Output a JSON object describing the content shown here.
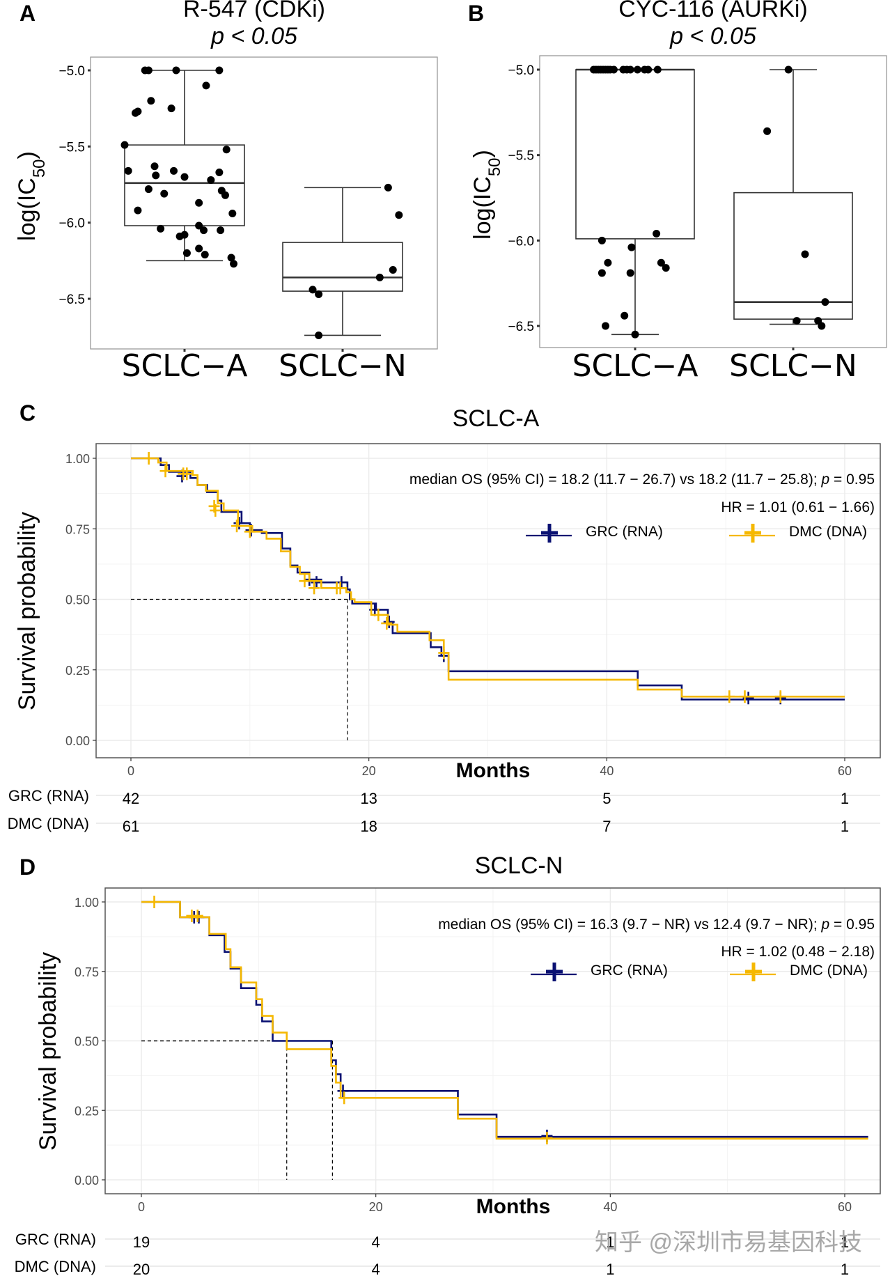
{
  "colors": {
    "grc": "#0a1172",
    "dmc": "#f5b800",
    "grid": "#ebebeb",
    "box": "#333333"
  },
  "watermark": "知乎 @深圳市易基因科技",
  "chart_data": [
    {
      "id": "A",
      "type": "box",
      "panel_label": "A",
      "title": "R-547 (CDKi)",
      "subtitle": "p < 0.05",
      "ylabel": "log(IC50)",
      "ylabel_main": "log(IC",
      "ylabel_sub": "50",
      "ylabel_end": ")",
      "ylim": [
        -6.72,
        -4.92
      ],
      "yticks": [
        -5.0,
        -5.5,
        -6.0,
        -6.5
      ],
      "ytick_labels": [
        "−5.0",
        "−5.5",
        "−6.0",
        "−6.5"
      ],
      "categories": [
        "SCLC−A",
        "SCLC−N"
      ],
      "boxes": [
        {
          "q1": -6.02,
          "median": -5.74,
          "q3": -5.49,
          "whisker_low": -6.25,
          "whisker_high": -5.0
        },
        {
          "q1": -6.45,
          "median": -6.36,
          "q3": -6.13,
          "whisker_low": -6.74,
          "whisker_high": -5.77
        }
      ],
      "points": [
        [
          [
            -0.33,
            -5.0
          ],
          [
            -0.3,
            -5.0
          ],
          [
            -0.07,
            -5.0
          ],
          [
            0.29,
            -5.0
          ],
          [
            0.18,
            -5.1
          ],
          [
            -0.28,
            -5.2
          ],
          [
            -0.11,
            -5.25
          ],
          [
            -0.39,
            -5.27
          ],
          [
            -0.41,
            -5.28
          ],
          [
            -0.5,
            -5.49
          ],
          [
            0.35,
            -5.52
          ],
          [
            -0.25,
            -5.63
          ],
          [
            -0.47,
            -5.66
          ],
          [
            -0.09,
            -5.66
          ],
          [
            -0.24,
            -5.69
          ],
          [
            0.0,
            -5.7
          ],
          [
            0.29,
            -5.67
          ],
          [
            0.22,
            -5.72
          ],
          [
            -0.3,
            -5.78
          ],
          [
            0.31,
            -5.79
          ],
          [
            0.34,
            -5.82
          ],
          [
            -0.17,
            -5.81
          ],
          [
            0.12,
            -5.87
          ],
          [
            0.4,
            -5.94
          ],
          [
            -0.39,
            -5.92
          ],
          [
            -0.2,
            -6.04
          ],
          [
            0.12,
            -6.02
          ],
          [
            0.16,
            -6.05
          ],
          [
            0.3,
            -6.05
          ],
          [
            -0.04,
            -6.09
          ],
          [
            0.0,
            -6.08
          ],
          [
            0.12,
            -6.17
          ],
          [
            0.02,
            -6.2
          ],
          [
            0.17,
            -6.21
          ],
          [
            0.39,
            -6.23
          ],
          [
            0.41,
            -6.27
          ]
        ],
        [
          [
            0.38,
            -5.77
          ],
          [
            0.47,
            -5.95
          ],
          [
            0.42,
            -6.31
          ],
          [
            0.31,
            -6.36
          ],
          [
            -0.25,
            -6.44
          ],
          [
            -0.2,
            -6.47
          ],
          [
            -0.2,
            -6.74
          ]
        ]
      ]
    },
    {
      "id": "B",
      "type": "box",
      "panel_label": "B",
      "title": "CYC-116 (AURKi)",
      "subtitle": "p < 0.05",
      "ylabel": "log(IC50)",
      "ylabel_main": "log(IC",
      "ylabel_sub": "50",
      "ylabel_end": ")",
      "ylim": [
        -6.58,
        -4.95
      ],
      "yticks": [
        -5.0,
        -5.5,
        -6.0,
        -6.5
      ],
      "ytick_labels": [
        "−5.0",
        "−5.5",
        "−6.0",
        "−6.5"
      ],
      "categories": [
        "SCLC−A",
        "SCLC−N"
      ],
      "boxes": [
        {
          "q1": -5.99,
          "median": -5.0,
          "q3": -5.0,
          "whisker_low": -6.55,
          "whisker_high": -5.0
        },
        {
          "q1": -6.46,
          "median": -6.36,
          "q3": -5.72,
          "whisker_low": -6.49,
          "whisker_high": -5.0
        }
      ],
      "points": [
        [
          [
            -0.35,
            -5.0
          ],
          [
            -0.33,
            -5.0
          ],
          [
            -0.31,
            -5.0
          ],
          [
            -0.29,
            -5.0
          ],
          [
            -0.27,
            -5.0
          ],
          [
            -0.25,
            -5.0
          ],
          [
            -0.23,
            -5.0
          ],
          [
            -0.21,
            -5.0
          ],
          [
            -0.18,
            -5.0
          ],
          [
            -0.1,
            -5.0
          ],
          [
            -0.07,
            -5.0
          ],
          [
            -0.04,
            -5.0
          ],
          [
            0.02,
            -5.0
          ],
          [
            0.08,
            -5.0
          ],
          [
            0.11,
            -5.0
          ],
          [
            0.19,
            -5.0
          ],
          [
            -0.28,
            -6.0
          ],
          [
            -0.03,
            -6.04
          ],
          [
            0.18,
            -5.96
          ],
          [
            -0.23,
            -6.13
          ],
          [
            0.22,
            -6.13
          ],
          [
            -0.28,
            -6.19
          ],
          [
            -0.04,
            -6.19
          ],
          [
            0.26,
            -6.16
          ],
          [
            -0.09,
            -6.44
          ],
          [
            -0.25,
            -6.5
          ],
          [
            0.0,
            -6.55
          ]
        ],
        [
          [
            -0.04,
            -5.0
          ],
          [
            -0.22,
            -5.36
          ],
          [
            0.1,
            -6.08
          ],
          [
            0.27,
            -6.36
          ],
          [
            0.03,
            -6.47
          ],
          [
            0.21,
            -6.47
          ],
          [
            0.24,
            -6.5
          ]
        ]
      ]
    },
    {
      "id": "C",
      "type": "line",
      "subtype": "kaplan-meier",
      "panel_label": "C",
      "title": "SCLC-A",
      "xlabel": "Months",
      "ylabel": "Survival probability",
      "xlim": [
        -3,
        62
      ],
      "ylim": [
        -0.04,
        1.04
      ],
      "xticks": [
        0,
        20,
        40,
        60
      ],
      "yticks": [
        0.0,
        0.25,
        0.5,
        0.75,
        1.0
      ],
      "ytick_labels": [
        "0.00",
        "0.25",
        "0.50",
        "0.75",
        "1.00"
      ],
      "annotation_line1": "median OS (95% CI) = 18.2 (11.7 − 26.7) vs 18.2 (11.7 − 25.8); p = 0.95",
      "annotation_line1_parts": [
        "median OS (95% CI) = 18.2 (11.7 − 26.7) vs 18.2 (11.7 − 25.8); ",
        "p",
        " = 0.95"
      ],
      "annotation_line2": "HR = 1.01 (0.61 − 1.66)",
      "median_lines": [
        18.2
      ],
      "legend": [
        "GRC (RNA)",
        "DMC (DNA)"
      ],
      "series": [
        {
          "name": "GRC (RNA)",
          "color_key": "grc",
          "steps": [
            [
              0,
              1.0
            ],
            [
              2.5,
              0.976
            ],
            [
              3.2,
              0.952
            ],
            [
              5.0,
              0.93
            ],
            [
              5.6,
              0.905
            ],
            [
              6.4,
              0.88
            ],
            [
              7.3,
              0.85
            ],
            [
              7.6,
              0.81
            ],
            [
              9.3,
              0.77
            ],
            [
              10.0,
              0.745
            ],
            [
              11.0,
              0.735
            ],
            [
              12.7,
              0.68
            ],
            [
              13.4,
              0.62
            ],
            [
              14.0,
              0.595
            ],
            [
              15.0,
              0.57
            ],
            [
              16.0,
              0.56
            ],
            [
              18.2,
              0.535
            ],
            [
              18.4,
              0.5
            ],
            [
              18.6,
              0.485
            ],
            [
              20.6,
              0.463
            ],
            [
              21.6,
              0.42
            ],
            [
              22.0,
              0.38
            ],
            [
              25.2,
              0.33
            ],
            [
              26.1,
              0.3
            ],
            [
              26.7,
              0.245
            ],
            [
              42.6,
              0.195
            ],
            [
              46.3,
              0.145
            ],
            [
              60,
              0.145
            ]
          ],
          "censors": [
            [
              4.3,
              0.937
            ],
            [
              9.1,
              0.77
            ],
            [
              10.1,
              0.745
            ],
            [
              15.0,
              0.57
            ],
            [
              15.6,
              0.56
            ],
            [
              17.7,
              0.56
            ],
            [
              20.5,
              0.463
            ],
            [
              21.7,
              0.42
            ],
            [
              26.3,
              0.3
            ],
            [
              51.9,
              0.15
            ],
            [
              54.6,
              0.15
            ]
          ]
        },
        {
          "name": "DMC (DNA)",
          "color_key": "dmc",
          "steps": [
            [
              0,
              1.0
            ],
            [
              2.3,
              0.985
            ],
            [
              3.0,
              0.955
            ],
            [
              5.2,
              0.94
            ],
            [
              5.6,
              0.905
            ],
            [
              6.3,
              0.885
            ],
            [
              7.3,
              0.84
            ],
            [
              7.8,
              0.815
            ],
            [
              9.0,
              0.76
            ],
            [
              10.2,
              0.74
            ],
            [
              11.4,
              0.715
            ],
            [
              12.6,
              0.67
            ],
            [
              13.4,
              0.615
            ],
            [
              14.2,
              0.59
            ],
            [
              15.0,
              0.565
            ],
            [
              16.0,
              0.54
            ],
            [
              18.1,
              0.525
            ],
            [
              18.5,
              0.5
            ],
            [
              18.8,
              0.49
            ],
            [
              20.2,
              0.445
            ],
            [
              21.6,
              0.41
            ],
            [
              22.4,
              0.385
            ],
            [
              25.1,
              0.355
            ],
            [
              26.3,
              0.31
            ],
            [
              26.7,
              0.215
            ],
            [
              42.6,
              0.18
            ],
            [
              46.3,
              0.155
            ],
            [
              60,
              0.155
            ]
          ],
          "censors": [
            [
              1.5,
              1.0
            ],
            [
              2.9,
              0.955
            ],
            [
              4.4,
              0.945
            ],
            [
              4.7,
              0.945
            ],
            [
              7.0,
              0.83
            ],
            [
              7.1,
              0.815
            ],
            [
              8.9,
              0.76
            ],
            [
              10.0,
              0.74
            ],
            [
              14.6,
              0.565
            ],
            [
              15.4,
              0.54
            ],
            [
              17.3,
              0.54
            ],
            [
              17.6,
              0.54
            ],
            [
              20.8,
              0.445
            ],
            [
              21.5,
              0.415
            ],
            [
              26.3,
              0.31
            ],
            [
              50.3,
              0.155
            ],
            [
              51.6,
              0.155
            ],
            [
              54.6,
              0.155
            ]
          ]
        }
      ],
      "risk_table": {
        "row_labels": [
          "GRC (RNA)",
          "DMC (DNA)"
        ],
        "times": [
          0,
          20,
          40,
          60
        ],
        "counts": [
          [
            42,
            13,
            5,
            1
          ],
          [
            61,
            18,
            7,
            1
          ]
        ]
      }
    },
    {
      "id": "D",
      "type": "line",
      "subtype": "kaplan-meier",
      "panel_label": "D",
      "title": "SCLC-N",
      "xlabel": "Months",
      "ylabel": "Survival probability",
      "xlim": [
        -3,
        62
      ],
      "ylim": [
        -0.04,
        1.05
      ],
      "xticks": [
        0,
        20,
        40,
        60
      ],
      "yticks": [
        0.0,
        0.25,
        0.5,
        0.75,
        1.0
      ],
      "ytick_labels": [
        "0.00",
        "0.25",
        "0.50",
        "0.75",
        "1.00"
      ],
      "annotation_line1": "median OS (95% CI) = 16.3 (9.7 − NR) vs 12.4 (9.7 − NR); p = 0.95",
      "annotation_line1_parts": [
        "median OS (95% CI) = 16.3 (9.7 − NR) vs 12.4 (9.7 − NR); ",
        "p",
        " = 0.95"
      ],
      "annotation_line2": "HR = 1.02 (0.48 − 2.18)",
      "median_lines": [
        12.4,
        16.3
      ],
      "legend": [
        "GRC (RNA)",
        "DMC (DNA)"
      ],
      "series": [
        {
          "name": "GRC (RNA)",
          "color_key": "grc",
          "steps": [
            [
              0,
              1.0
            ],
            [
              3.3,
              0.945
            ],
            [
              5.8,
              0.88
            ],
            [
              7.1,
              0.82
            ],
            [
              7.6,
              0.76
            ],
            [
              8.5,
              0.69
            ],
            [
              9.8,
              0.63
            ],
            [
              10.3,
              0.57
            ],
            [
              11.2,
              0.5
            ],
            [
              16.2,
              0.43
            ],
            [
              16.6,
              0.38
            ],
            [
              17.0,
              0.32
            ],
            [
              27.0,
              0.235
            ],
            [
              30.3,
              0.155
            ],
            [
              62,
              0.155
            ]
          ],
          "censors": [
            [
              4.5,
              0.945
            ],
            [
              4.9,
              0.945
            ],
            [
              17.2,
              0.32
            ],
            [
              34.6,
              0.158
            ]
          ]
        },
        {
          "name": "DMC (DNA)",
          "color_key": "dmc",
          "steps": [
            [
              0,
              1.0
            ],
            [
              3.3,
              0.945
            ],
            [
              5.8,
              0.885
            ],
            [
              7.2,
              0.83
            ],
            [
              7.6,
              0.765
            ],
            [
              8.5,
              0.71
            ],
            [
              9.8,
              0.65
            ],
            [
              10.3,
              0.59
            ],
            [
              11.2,
              0.53
            ],
            [
              12.4,
              0.47
            ],
            [
              16.2,
              0.41
            ],
            [
              16.6,
              0.35
            ],
            [
              17.0,
              0.295
            ],
            [
              27.0,
              0.22
            ],
            [
              30.3,
              0.148
            ],
            [
              62,
              0.148
            ]
          ],
          "censors": [
            [
              1.1,
              1.0
            ],
            [
              4.3,
              0.95
            ],
            [
              4.8,
              0.95
            ],
            [
              17.3,
              0.295
            ],
            [
              34.6,
              0.15
            ]
          ]
        }
      ],
      "risk_table": {
        "row_labels": [
          "GRC (RNA)",
          "DMC (DNA)"
        ],
        "times": [
          0,
          20,
          40,
          60
        ],
        "counts": [
          [
            19,
            4,
            1,
            1
          ],
          [
            20,
            4,
            1,
            1
          ]
        ]
      }
    }
  ]
}
